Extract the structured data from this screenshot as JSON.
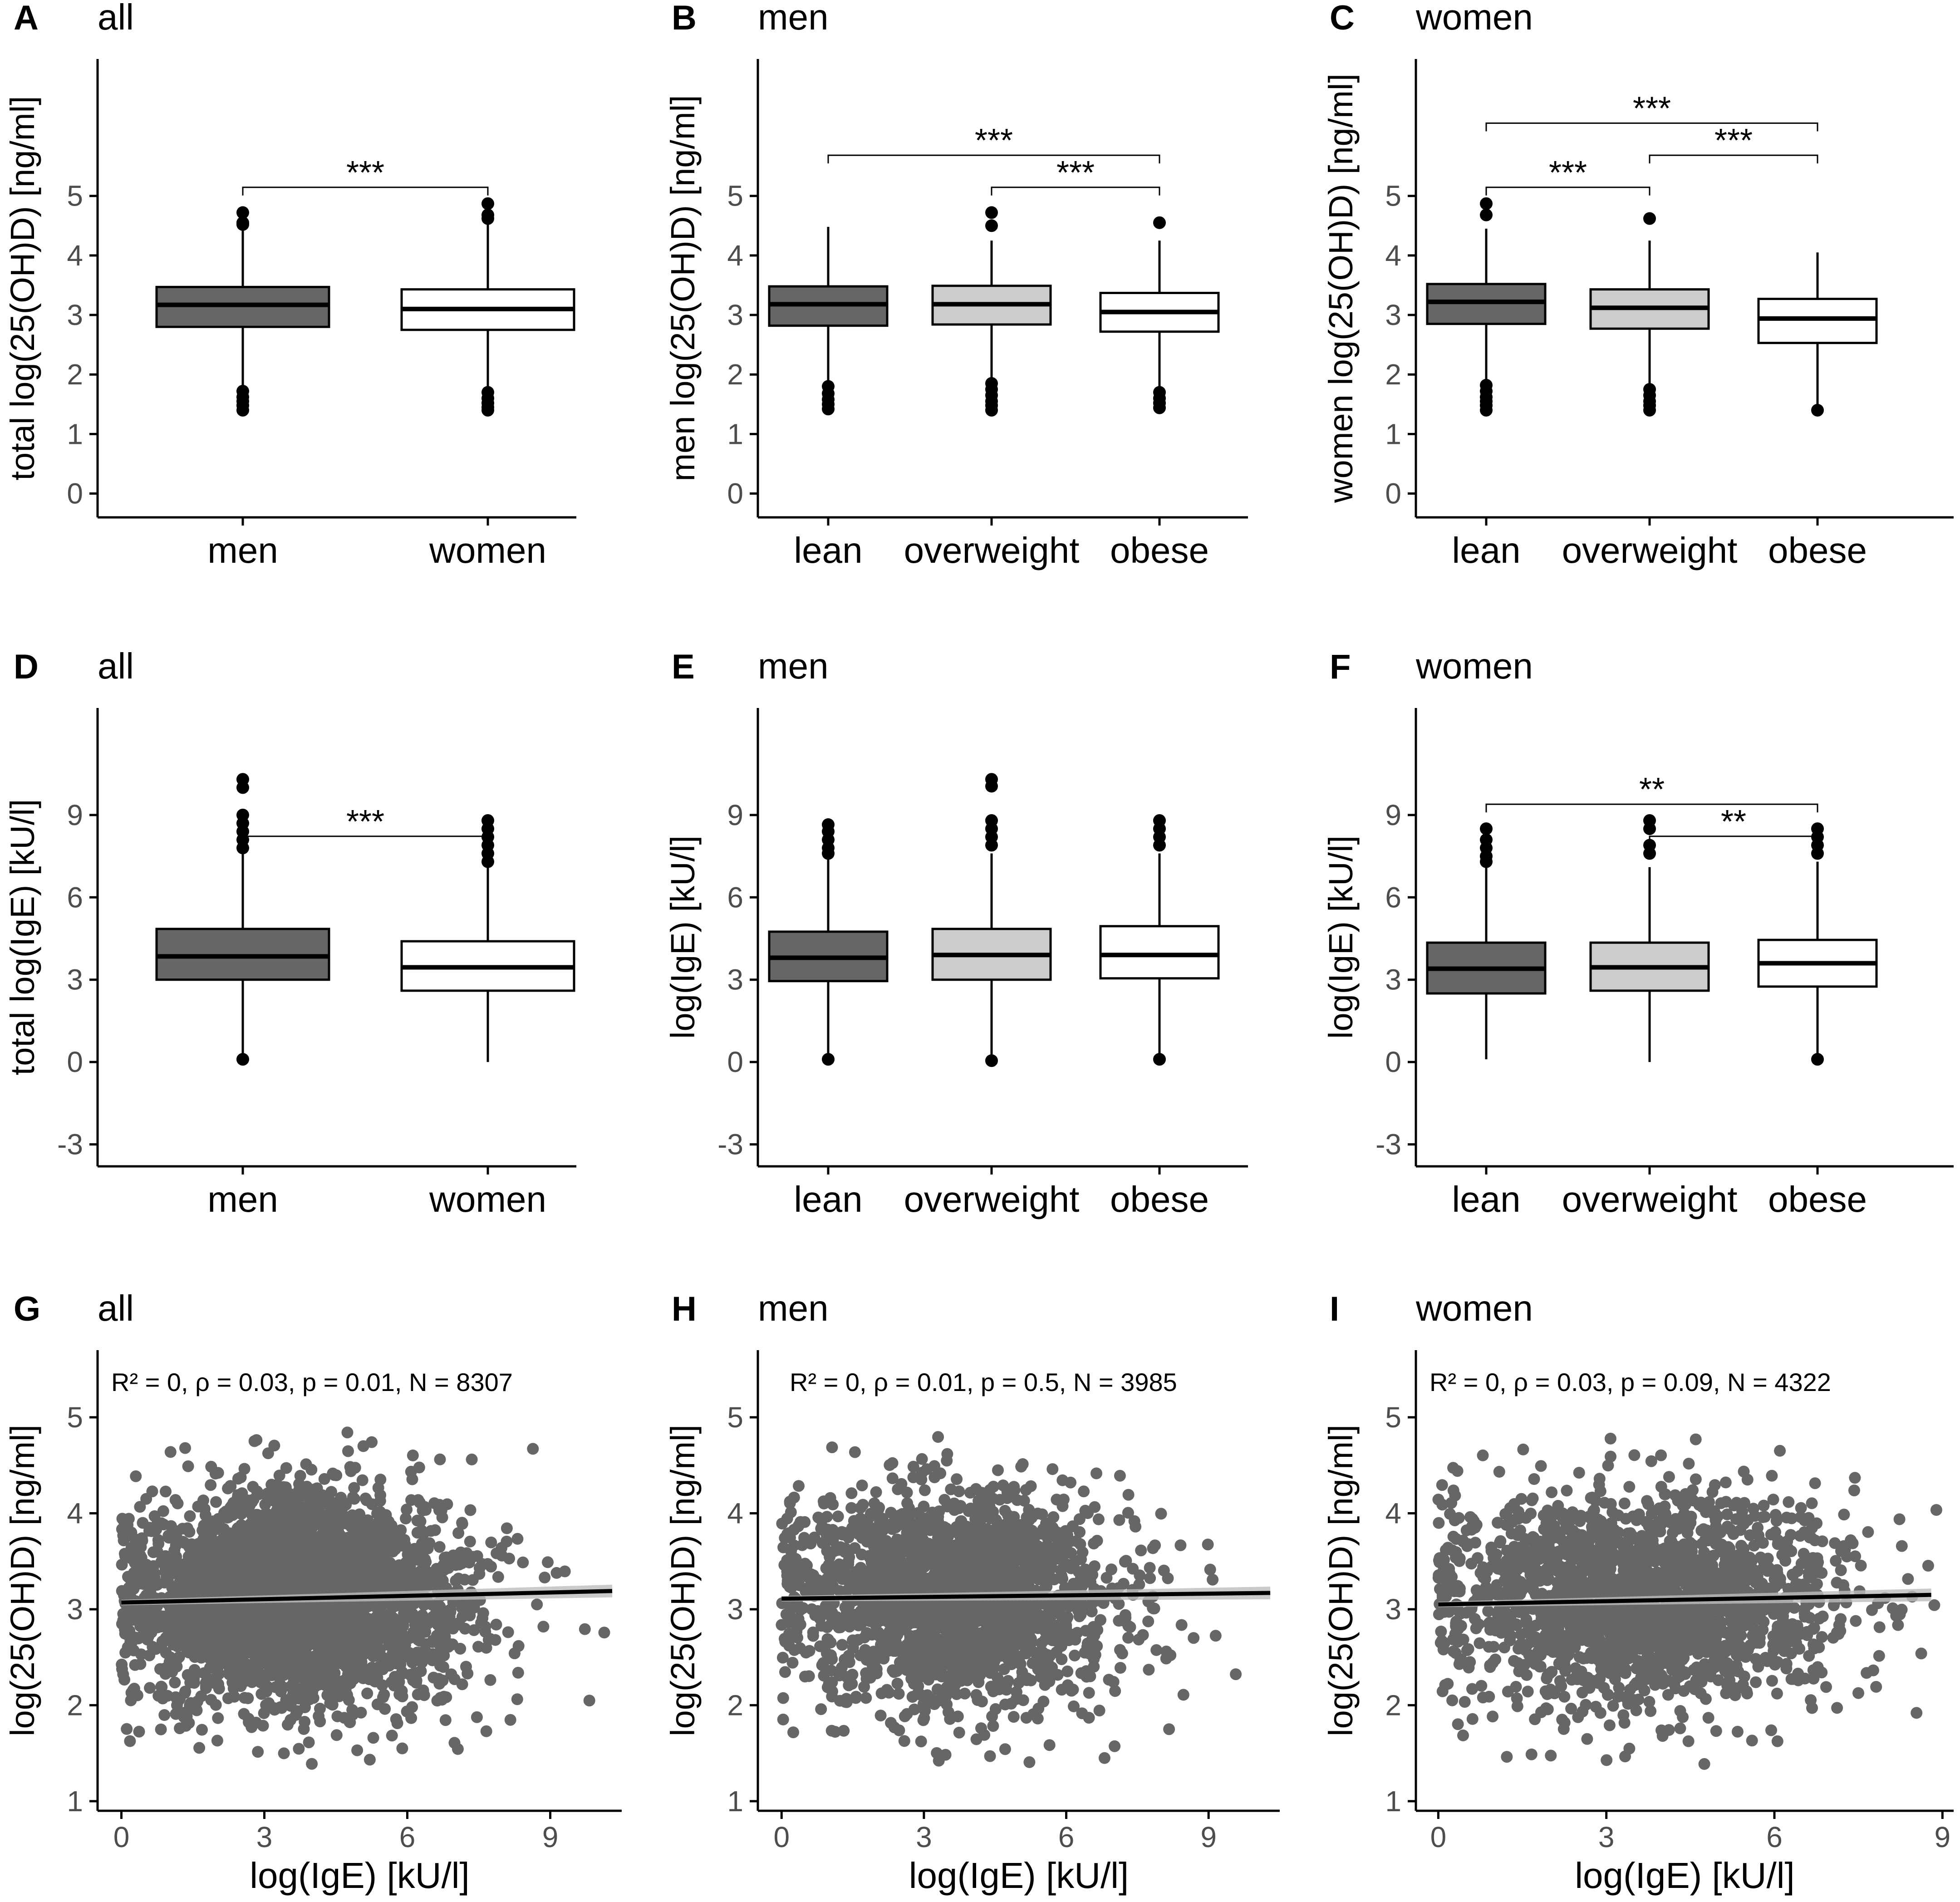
{
  "chart_data": [
    {
      "id": "A",
      "letter": "A",
      "title": "all",
      "type": "box",
      "ylabel": "total log(25(OH)D) [ng/ml]",
      "ylim": [
        -0.4,
        7.3
      ],
      "yticks": [
        0,
        1,
        2,
        3,
        4,
        5
      ],
      "categories": [
        "men",
        "women"
      ],
      "boxes": [
        {
          "q1": 2.8,
          "median": 3.17,
          "q3": 3.47,
          "low": 1.75,
          "high": 4.45,
          "outliers": [
            4.72,
            4.55,
            4.52,
            1.72,
            1.62,
            1.55,
            1.48,
            1.4
          ],
          "fill": "#666666"
        },
        {
          "q1": 2.75,
          "median": 3.1,
          "q3": 3.43,
          "low": 1.75,
          "high": 4.6,
          "outliers": [
            4.87,
            4.68,
            4.62,
            1.7,
            1.6,
            1.52,
            1.45,
            1.4
          ],
          "fill": "#ffffff"
        }
      ],
      "significance": [
        {
          "from": 0,
          "to": 1,
          "label": "***"
        }
      ]
    },
    {
      "id": "B",
      "letter": "B",
      "title": "men",
      "type": "box",
      "ylabel": "men log(25(OH)D) [ng/ml]",
      "ylim": [
        -0.4,
        7.3
      ],
      "yticks": [
        0,
        1,
        2,
        3,
        4,
        5
      ],
      "categories": [
        "lean",
        "overweight",
        "obese"
      ],
      "boxes": [
        {
          "q1": 2.82,
          "median": 3.18,
          "q3": 3.48,
          "low": 1.85,
          "high": 4.48,
          "outliers": [
            1.8,
            1.68,
            1.58,
            1.5,
            1.42
          ],
          "fill": "#666666"
        },
        {
          "q1": 2.84,
          "median": 3.18,
          "q3": 3.49,
          "low": 1.88,
          "high": 4.25,
          "outliers": [
            4.72,
            4.5,
            1.85,
            1.75,
            1.65,
            1.55,
            1.48,
            1.4
          ],
          "fill": "#cccccc"
        },
        {
          "q1": 2.72,
          "median": 3.05,
          "q3": 3.37,
          "low": 1.75,
          "high": 4.25,
          "outliers": [
            4.55,
            1.7,
            1.6,
            1.52,
            1.44
          ],
          "fill": "#ffffff"
        }
      ],
      "significance": [
        {
          "from": 0,
          "to": 2,
          "label": "***"
        },
        {
          "from": 1,
          "to": 2,
          "label": "***"
        }
      ]
    },
    {
      "id": "C",
      "letter": "C",
      "title": "women",
      "type": "box",
      "ylabel": "women log(25(OH)D) [ng/ml]",
      "ylim": [
        -0.4,
        7.3
      ],
      "yticks": [
        0,
        1,
        2,
        3,
        4,
        5
      ],
      "categories": [
        "lean",
        "overweight",
        "obese"
      ],
      "boxes": [
        {
          "q1": 2.85,
          "median": 3.22,
          "q3": 3.52,
          "low": 1.85,
          "high": 4.45,
          "outliers": [
            4.87,
            4.68,
            1.82,
            1.72,
            1.62,
            1.55,
            1.48,
            1.4
          ],
          "fill": "#666666"
        },
        {
          "q1": 2.77,
          "median": 3.12,
          "q3": 3.43,
          "low": 1.8,
          "high": 4.25,
          "outliers": [
            4.62,
            1.75,
            1.65,
            1.55,
            1.48,
            1.4
          ],
          "fill": "#cccccc"
        },
        {
          "q1": 2.53,
          "median": 2.94,
          "q3": 3.27,
          "low": 1.42,
          "high": 4.05,
          "outliers": [
            1.4
          ],
          "fill": "#ffffff"
        }
      ],
      "significance": [
        {
          "from": 0,
          "to": 1,
          "label": "***"
        },
        {
          "from": 0,
          "to": 2,
          "label": "***"
        },
        {
          "from": 1,
          "to": 2,
          "label": "***"
        }
      ]
    },
    {
      "id": "D",
      "letter": "D",
      "title": "all",
      "type": "box",
      "ylabel": "total log(IgE) [kU/l]",
      "ylim": [
        -3.8,
        12.9
      ],
      "yticks": [
        -3,
        0,
        3,
        6,
        9
      ],
      "ytick_labels": [
        "-3",
        "0",
        "3",
        "6",
        "9"
      ],
      "categories": [
        "men",
        "women"
      ],
      "boxes": [
        {
          "q1": 3.0,
          "median": 3.85,
          "q3": 4.85,
          "low": 0.1,
          "high": 7.6,
          "outliers": [
            10.3,
            10.0,
            9.0,
            8.7,
            8.4,
            8.1,
            7.8,
            0.1
          ],
          "fill": "#666666"
        },
        {
          "q1": 2.6,
          "median": 3.45,
          "q3": 4.4,
          "low": 0.0,
          "high": 7.1,
          "outliers": [
            8.8,
            8.5,
            8.2,
            7.9,
            7.6,
            7.3
          ],
          "fill": "#ffffff"
        }
      ],
      "significance": [
        {
          "from": 0,
          "to": 1,
          "label": "***"
        }
      ]
    },
    {
      "id": "E",
      "letter": "E",
      "title": "men",
      "type": "box",
      "ylabel": "log(IgE) [kU/l]",
      "ylim": [
        -3.8,
        12.9
      ],
      "yticks": [
        -3,
        0,
        3,
        6,
        9
      ],
      "ytick_labels": [
        "-3",
        "0",
        "3",
        "6",
        "9"
      ],
      "categories": [
        "lean",
        "overweight",
        "obese"
      ],
      "boxes": [
        {
          "q1": 2.95,
          "median": 3.8,
          "q3": 4.75,
          "low": 0.1,
          "high": 7.4,
          "outliers": [
            8.65,
            8.4,
            8.1,
            7.8,
            7.6,
            0.1
          ],
          "fill": "#666666"
        },
        {
          "q1": 3.0,
          "median": 3.9,
          "q3": 4.85,
          "low": 0.1,
          "high": 7.6,
          "outliers": [
            10.3,
            10.05,
            8.8,
            8.5,
            8.2,
            7.9,
            0.05
          ],
          "fill": "#cccccc"
        },
        {
          "q1": 3.05,
          "median": 3.9,
          "q3": 4.95,
          "low": 0.1,
          "high": 7.6,
          "outliers": [
            8.8,
            8.5,
            8.2,
            7.9,
            0.1
          ],
          "fill": "#ffffff"
        }
      ],
      "significance": []
    },
    {
      "id": "F",
      "letter": "F",
      "title": "women",
      "type": "box",
      "ylabel": "log(IgE) [kU/l]",
      "ylim": [
        -3.8,
        12.9
      ],
      "yticks": [
        -3,
        0,
        3,
        6,
        9
      ],
      "ytick_labels": [
        "-3",
        "0",
        "3",
        "6",
        "9"
      ],
      "categories": [
        "lean",
        "overweight",
        "obese"
      ],
      "boxes": [
        {
          "q1": 2.5,
          "median": 3.4,
          "q3": 4.35,
          "low": 0.1,
          "high": 7.1,
          "outliers": [
            8.5,
            8.1,
            7.8,
            7.5,
            7.3
          ],
          "fill": "#666666"
        },
        {
          "q1": 2.6,
          "median": 3.45,
          "q3": 4.35,
          "low": 0.0,
          "high": 7.1,
          "outliers": [
            8.8,
            8.5,
            7.9,
            7.6
          ],
          "fill": "#cccccc"
        },
        {
          "q1": 2.75,
          "median": 3.6,
          "q3": 4.45,
          "low": 0.1,
          "high": 7.3,
          "outliers": [
            8.5,
            8.2,
            7.9,
            7.6,
            0.1
          ],
          "fill": "#ffffff"
        }
      ],
      "significance": [
        {
          "from": 0,
          "to": 2,
          "label": "**"
        },
        {
          "from": 1,
          "to": 2,
          "label": "**"
        }
      ]
    },
    {
      "id": "G",
      "letter": "G",
      "title": "all",
      "type": "scatter",
      "xlabel": "log(IgE) [kU/l]",
      "ylabel": "log(25(OH)D) [ng/ml]",
      "xlim": [
        -0.5,
        10.5
      ],
      "xticks": [
        0,
        3,
        6,
        9
      ],
      "ylim": [
        0.9,
        5.7
      ],
      "yticks": [
        1,
        2,
        3,
        4,
        5
      ],
      "annotation": {
        "r2": "R² = 0,",
        "rho": "ρ = 0.03,",
        "p": "p = 0.01,",
        "n": "N = 8307"
      },
      "regression": {
        "x": [
          0,
          10.3
        ],
        "y": [
          3.07,
          3.19
        ]
      },
      "n_points": 3200,
      "point_color": "#666666",
      "seed": 11
    },
    {
      "id": "H",
      "letter": "H",
      "title": "men",
      "type": "scatter",
      "xlabel": "log(IgE) [kU/l]",
      "ylabel": "log(25(OH)D) [ng/ml]",
      "xlim": [
        -0.5,
        10.5
      ],
      "xticks": [
        0,
        3,
        6,
        9
      ],
      "ylim": [
        0.9,
        5.7
      ],
      "yticks": [
        1,
        2,
        3,
        4,
        5
      ],
      "annotation": {
        "r2": "R² = 0,",
        "rho": "ρ = 0.01,",
        "p": "p = 0.5,",
        "n": "N = 3985"
      },
      "regression": {
        "x": [
          0,
          10.3
        ],
        "y": [
          3.11,
          3.17
        ]
      },
      "n_points": 2000,
      "point_color": "#666666",
      "seed": 23
    },
    {
      "id": "I",
      "letter": "I",
      "title": "women",
      "type": "scatter",
      "xlabel": "log(IgE) [kU/l]",
      "ylabel": "log(25(OH)D) [ng/ml]",
      "xlim": [
        -0.4,
        9.2
      ],
      "xticks": [
        0,
        3,
        6,
        9
      ],
      "ylim": [
        0.9,
        5.7
      ],
      "yticks": [
        1,
        2,
        3,
        4,
        5
      ],
      "annotation": {
        "r2": "R² = 0,",
        "rho": "ρ = 0.03,",
        "p": "p = 0.09,",
        "n": "N = 4322"
      },
      "regression": {
        "x": [
          0,
          8.8
        ],
        "y": [
          3.05,
          3.15
        ]
      },
      "n_points": 2100,
      "point_color": "#666666",
      "seed": 37
    }
  ]
}
